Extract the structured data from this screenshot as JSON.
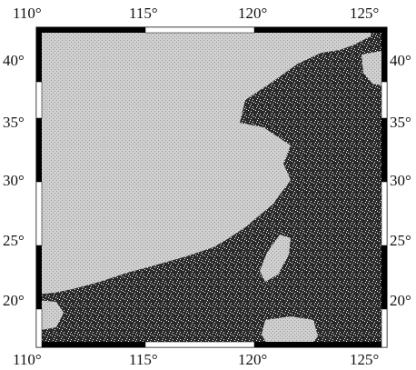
{
  "map": {
    "lon_range": [
      110,
      126
    ],
    "lat_range": [
      16,
      43
    ],
    "lon_ticks": [
      110,
      115,
      120,
      125
    ],
    "lat_ticks": [
      20,
      25,
      30,
      35,
      40
    ],
    "lon_tick_labels": [
      "110°",
      "115°",
      "120°",
      "125°"
    ],
    "lat_tick_labels": [
      "20°",
      "25°",
      "30°",
      "35°",
      "40°"
    ],
    "frame_style": "alternating black/white fancy frame",
    "land_color": "#cfcfcf",
    "sea_color": "#2a2a2a",
    "sea_speckle_color": "#f4f4f4",
    "frame_color": "#000000"
  }
}
